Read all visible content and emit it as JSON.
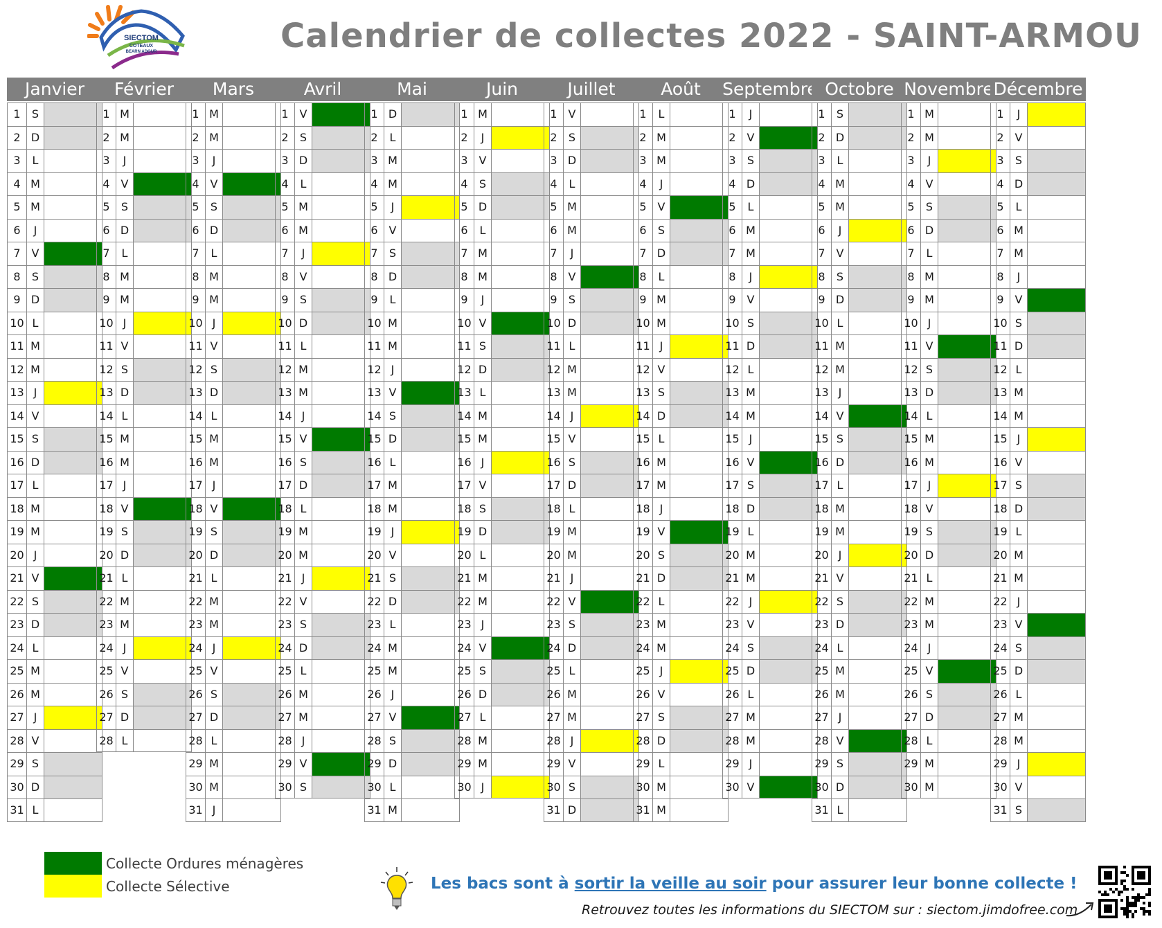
{
  "header": {
    "title": "Calendrier de collectes 2022 - SAINT-ARMOU",
    "logo_text": [
      "SIECTOM",
      "COTEAUX",
      "BEARN ADOUR"
    ]
  },
  "colors": {
    "ordures": "#007a00",
    "selective": "#ffff00",
    "weekend": "#d9d9d9",
    "header": "#808080"
  },
  "months": [
    {
      "name": "Janvier",
      "first_weekday": "S",
      "days": 31,
      "ordures": [
        7,
        21
      ],
      "selective": [
        13,
        27
      ]
    },
    {
      "name": "Février",
      "first_weekday": "M",
      "days": 28,
      "ordures": [
        4,
        18
      ],
      "selective": [
        10,
        24
      ]
    },
    {
      "name": "Mars",
      "first_weekday": "M",
      "days": 31,
      "ordures": [
        4,
        18
      ],
      "selective": [
        10,
        24
      ]
    },
    {
      "name": "Avril",
      "first_weekday": "V",
      "days": 30,
      "ordures": [
        1,
        15,
        29
      ],
      "selective": [
        7,
        21
      ]
    },
    {
      "name": "Mai",
      "first_weekday": "D",
      "days": 31,
      "ordures": [
        13,
        27
      ],
      "selective": [
        5,
        19
      ]
    },
    {
      "name": "Juin",
      "first_weekday": "M",
      "days": 30,
      "ordures": [
        10,
        24
      ],
      "selective": [
        2,
        16,
        30
      ]
    },
    {
      "name": "Juillet",
      "first_weekday": "V",
      "days": 31,
      "ordures": [
        8,
        22
      ],
      "selective": [
        14,
        28
      ]
    },
    {
      "name": "Août",
      "first_weekday": "L",
      "days": 31,
      "ordures": [
        5,
        19
      ],
      "selective": [
        11,
        25
      ]
    },
    {
      "name": "Septembre",
      "first_weekday": "J",
      "days": 30,
      "ordures": [
        2,
        16,
        30
      ],
      "selective": [
        8,
        22
      ]
    },
    {
      "name": "Octobre",
      "first_weekday": "S",
      "days": 31,
      "ordures": [
        14,
        28
      ],
      "selective": [
        6,
        20
      ]
    },
    {
      "name": "Novembre",
      "first_weekday": "M",
      "days": 30,
      "ordures": [
        11,
        25
      ],
      "selective": [
        3,
        17
      ]
    },
    {
      "name": "Décembre",
      "first_weekday": "J",
      "days": 31,
      "ordures": [
        9,
        23
      ],
      "selective": [
        1,
        15,
        29
      ]
    }
  ],
  "legend": {
    "ordures_label": "Collecte Ordures ménagères",
    "selective_label": "Collecte Sélective"
  },
  "footer": {
    "tip_part1": "Les bacs sont à ",
    "tip_link": "sortir la veille au soir",
    "tip_part2": " pour assurer leur bonne collecte !",
    "info": "Retrouvez toutes les informations du SIECTOM sur : siectom.jimdofree.com"
  }
}
